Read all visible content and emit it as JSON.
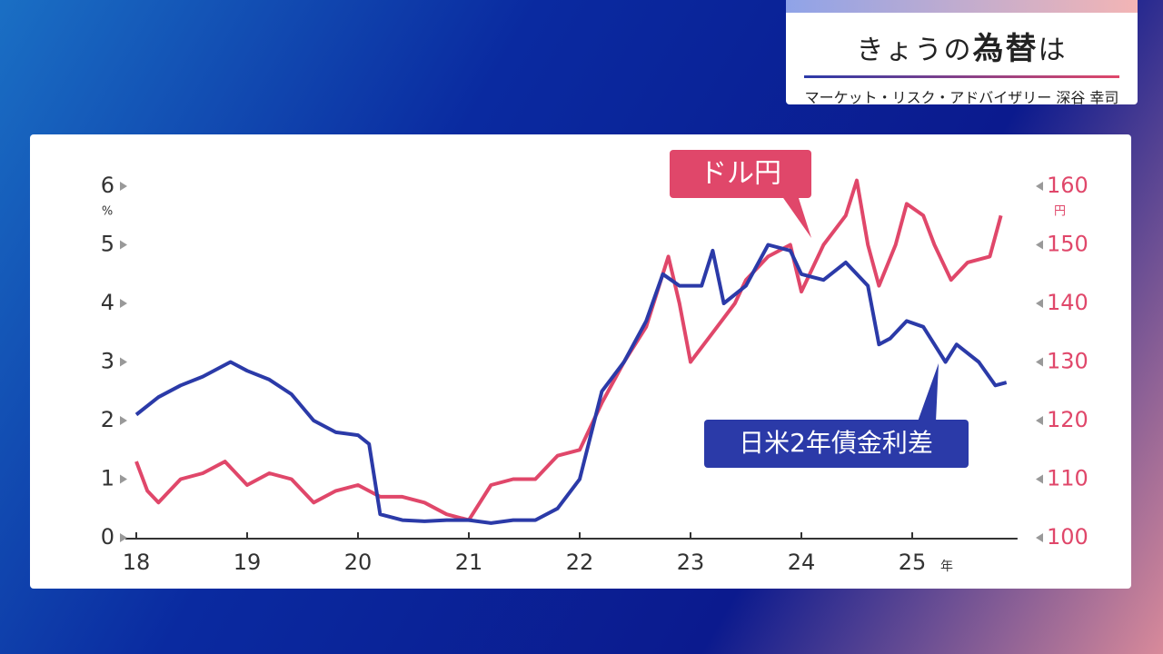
{
  "header": {
    "title_parts": [
      "きょうの",
      "為替",
      "は"
    ],
    "subtitle": "マーケット・リスク・アドバイザリー 深谷 幸司"
  },
  "chart_data": {
    "type": "line",
    "x_unit": "年",
    "y_unit": "%",
    "y2_unit": "円",
    "xlim": [
      18,
      25.95
    ],
    "xticks": [
      18,
      19,
      20,
      21,
      22,
      23,
      24,
      25
    ],
    "ylim": [
      0,
      6
    ],
    "yticks": [
      0,
      1,
      2,
      3,
      4,
      5,
      6
    ],
    "y2lim": [
      100,
      160
    ],
    "y2ticks": [
      100,
      110,
      120,
      130,
      140,
      150,
      160
    ],
    "series": [
      {
        "name": "日米2年債金利差",
        "color": "#2b3aa8",
        "axis": "y",
        "x": [
          18.0,
          18.2,
          18.4,
          18.6,
          18.85,
          19.0,
          19.2,
          19.4,
          19.6,
          19.8,
          20.0,
          20.1,
          20.2,
          20.4,
          20.6,
          20.8,
          21.0,
          21.2,
          21.4,
          21.6,
          21.8,
          22.0,
          22.2,
          22.4,
          22.6,
          22.75,
          22.9,
          23.1,
          23.2,
          23.3,
          23.5,
          23.7,
          23.9,
          24.0,
          24.2,
          24.4,
          24.6,
          24.7,
          24.8,
          24.95,
          25.1,
          25.3,
          25.4,
          25.6,
          25.75,
          25.85
        ],
        "values": [
          2.1,
          2.4,
          2.6,
          2.75,
          3.0,
          2.85,
          2.7,
          2.45,
          2.0,
          1.8,
          1.75,
          1.6,
          0.4,
          0.3,
          0.28,
          0.3,
          0.3,
          0.25,
          0.3,
          0.3,
          0.5,
          1.0,
          2.5,
          3.0,
          3.7,
          4.5,
          4.3,
          4.3,
          4.9,
          4.0,
          4.3,
          5.0,
          4.9,
          4.5,
          4.4,
          4.7,
          4.3,
          3.3,
          3.4,
          3.7,
          3.6,
          3.0,
          3.3,
          3.0,
          2.6,
          2.65
        ]
      },
      {
        "name": "ドル円",
        "color": "#e0476a",
        "axis": "y2",
        "x": [
          18.0,
          18.1,
          18.2,
          18.4,
          18.6,
          18.8,
          19.0,
          19.2,
          19.4,
          19.6,
          19.8,
          20.0,
          20.2,
          20.4,
          20.6,
          20.8,
          21.0,
          21.2,
          21.4,
          21.6,
          21.8,
          22.0,
          22.2,
          22.4,
          22.6,
          22.8,
          22.9,
          23.0,
          23.2,
          23.4,
          23.5,
          23.7,
          23.9,
          24.0,
          24.2,
          24.4,
          24.5,
          24.6,
          24.7,
          24.85,
          24.95,
          25.1,
          25.2,
          25.35,
          25.5,
          25.7,
          25.8
        ],
        "values": [
          113,
          108,
          106,
          110,
          111,
          113,
          109,
          111,
          110,
          106,
          108,
          109,
          107,
          107,
          106,
          104,
          103,
          109,
          110,
          110,
          114,
          115,
          123,
          130,
          136,
          148,
          140,
          130,
          135,
          140,
          144,
          148,
          150,
          142,
          150,
          155,
          161,
          150,
          143,
          150,
          157,
          155,
          150,
          144,
          147,
          148,
          155
        ]
      }
    ]
  }
}
